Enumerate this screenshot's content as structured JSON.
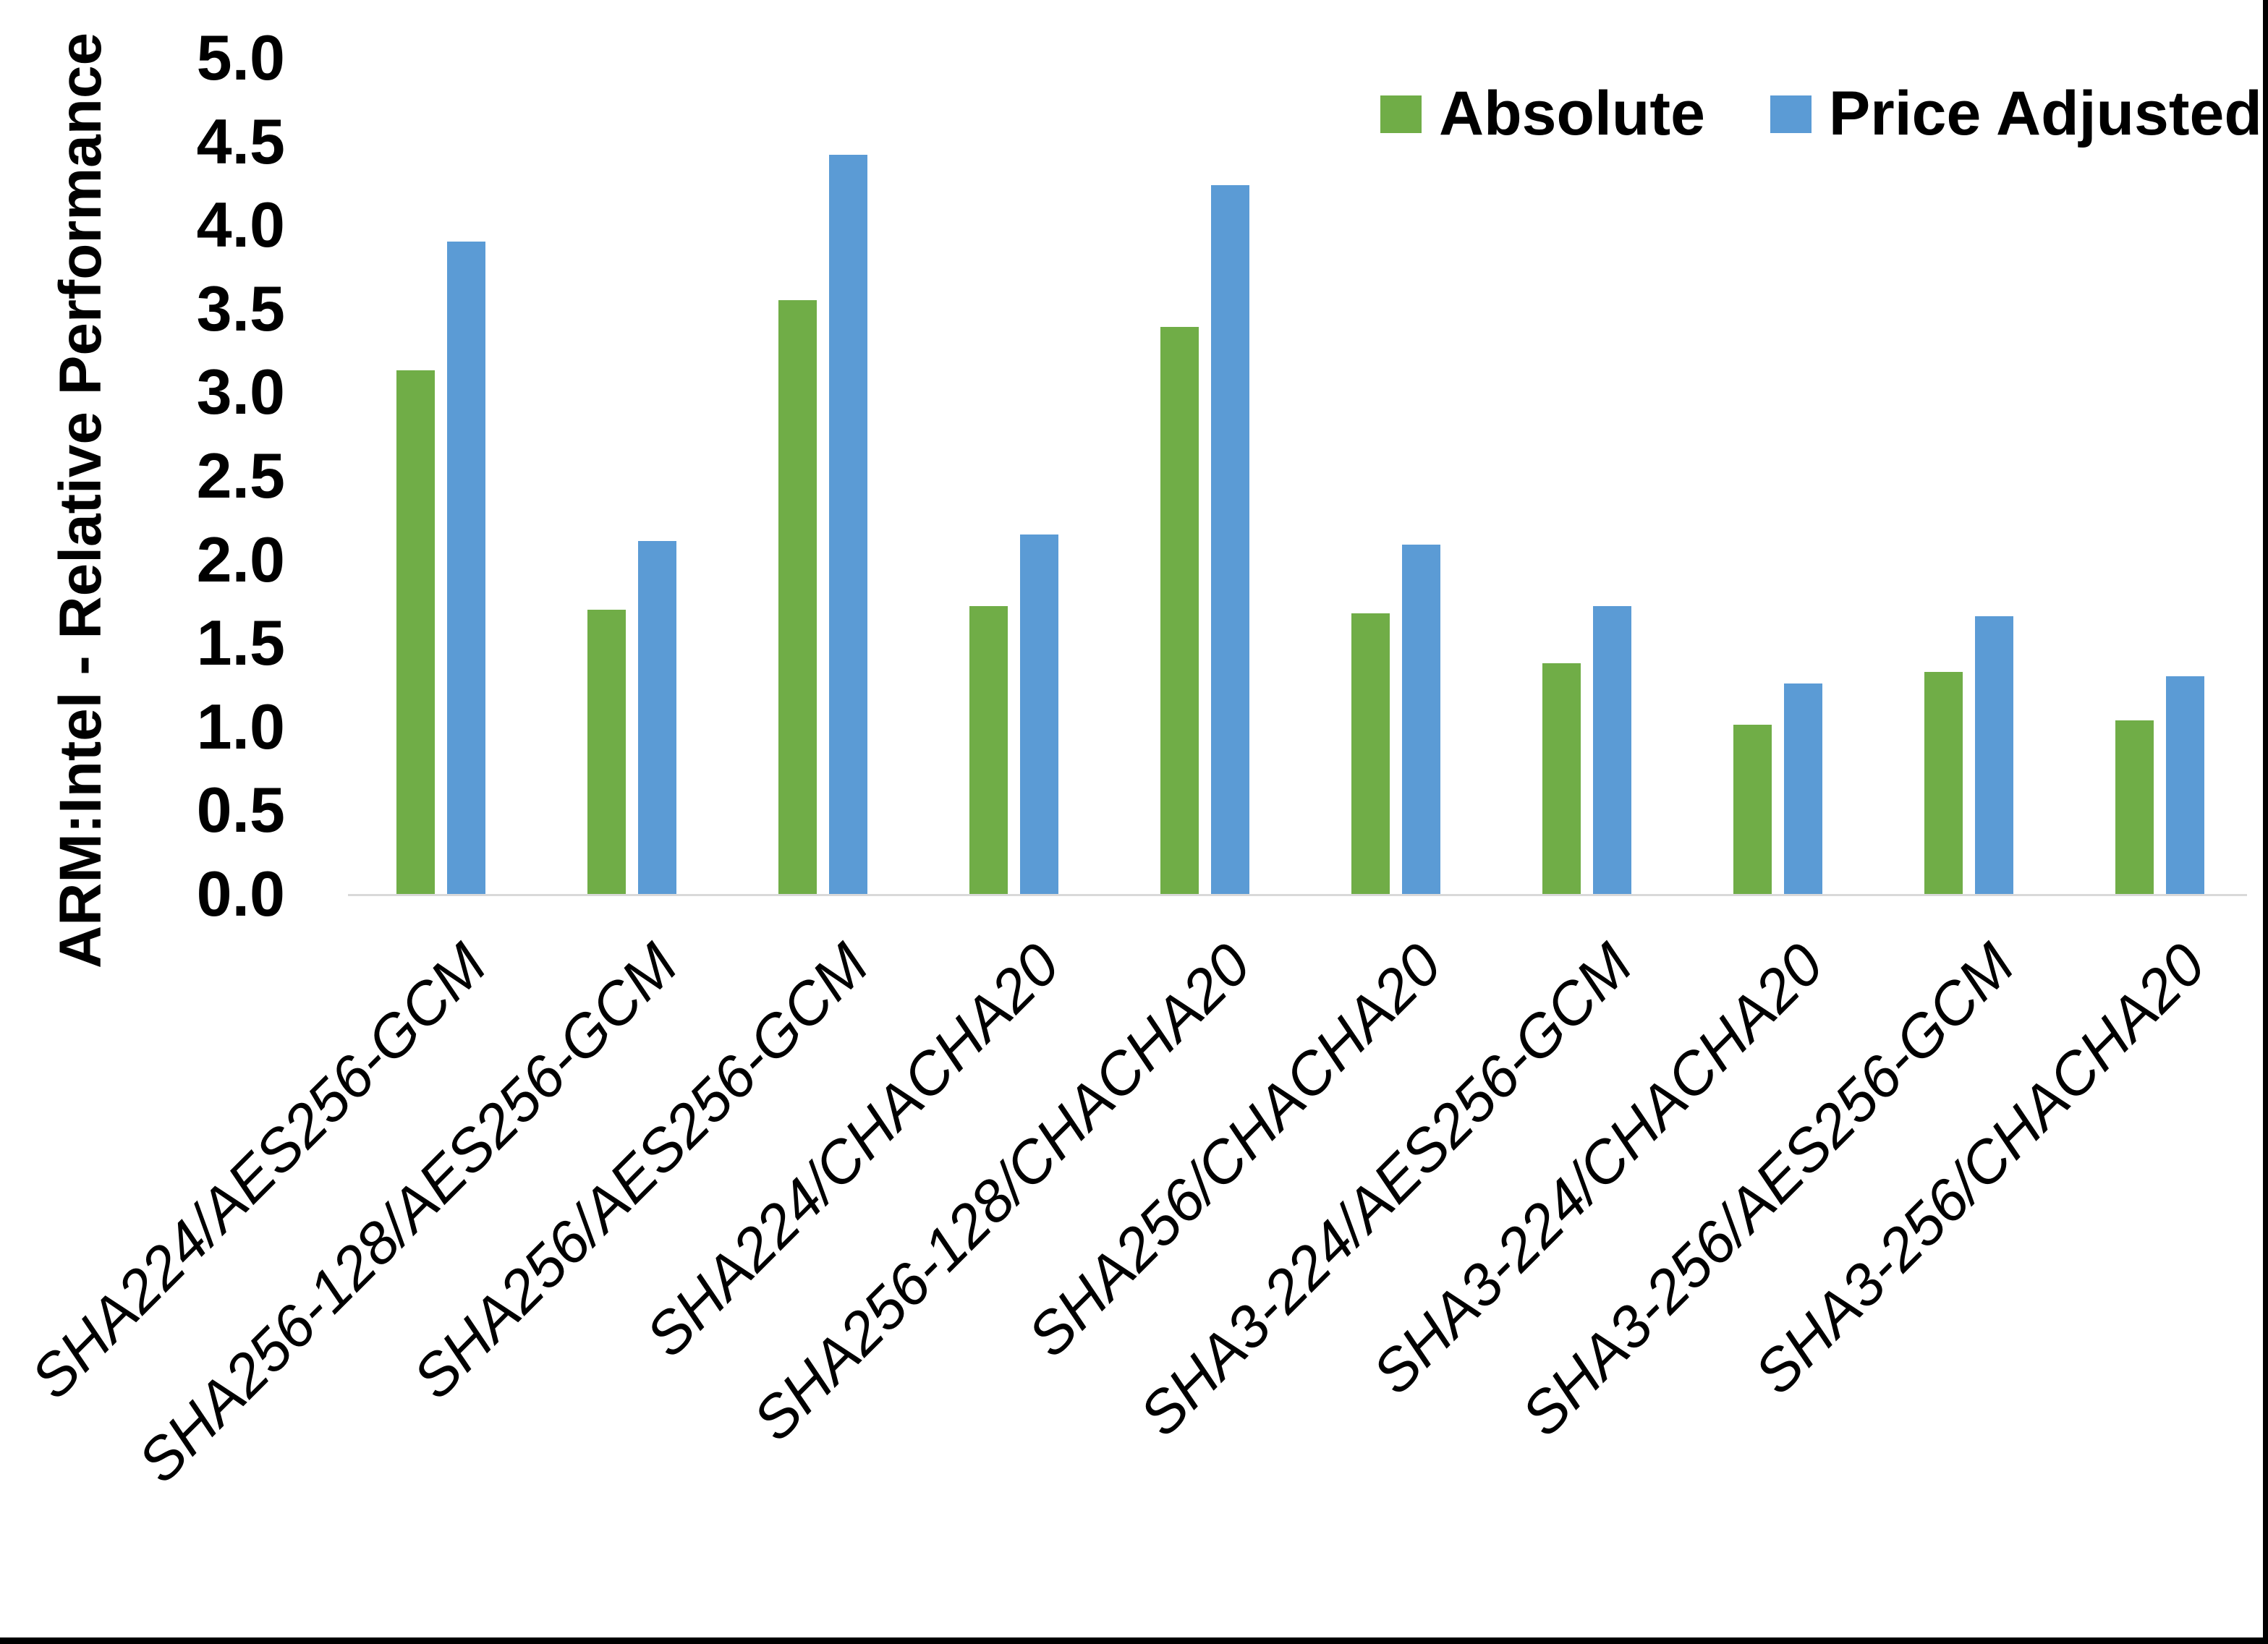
{
  "figure": {
    "background": "#ffffff",
    "border_color": "#000000"
  },
  "chart_data": {
    "type": "bar",
    "title": "",
    "xlabel": "",
    "ylabel": "ARM:Intel - Relative Performance",
    "ylim": [
      0.0,
      5.0
    ],
    "ytick_step": 0.5,
    "ytick_labels": [
      "5.0",
      "4.5",
      "4.0",
      "3.5",
      "3.0",
      "2.5",
      "2.0",
      "1.5",
      "1.0",
      "0.5",
      "0.0"
    ],
    "grid": false,
    "legend_position": "top-right",
    "categories": [
      "SHA224/AES256-GCM",
      "SHA256-128/AES256-GCM",
      "SHA256/AES256-GCM",
      "SHA224/CHACHA20",
      "SHA256-128/CHACHA20",
      "SHA256/CHACHA20",
      "SHA3-224/AES256-GCM",
      "SHA3-224/CHACHA20",
      "SHA3-256/AES256-GCM",
      "SHA3-256/CHACHA20"
    ],
    "series": [
      {
        "name": "Absolute",
        "color": "#70AD47",
        "values": [
          3.13,
          1.7,
          3.55,
          1.72,
          3.39,
          1.68,
          1.38,
          1.01,
          1.33,
          1.04
        ]
      },
      {
        "name": "Price Adjusted",
        "color": "#5B9BD5",
        "values": [
          3.9,
          2.11,
          4.42,
          2.15,
          4.24,
          2.09,
          1.72,
          1.26,
          1.66,
          1.3
        ]
      }
    ],
    "axis_line_color": "#d9d9d9"
  }
}
